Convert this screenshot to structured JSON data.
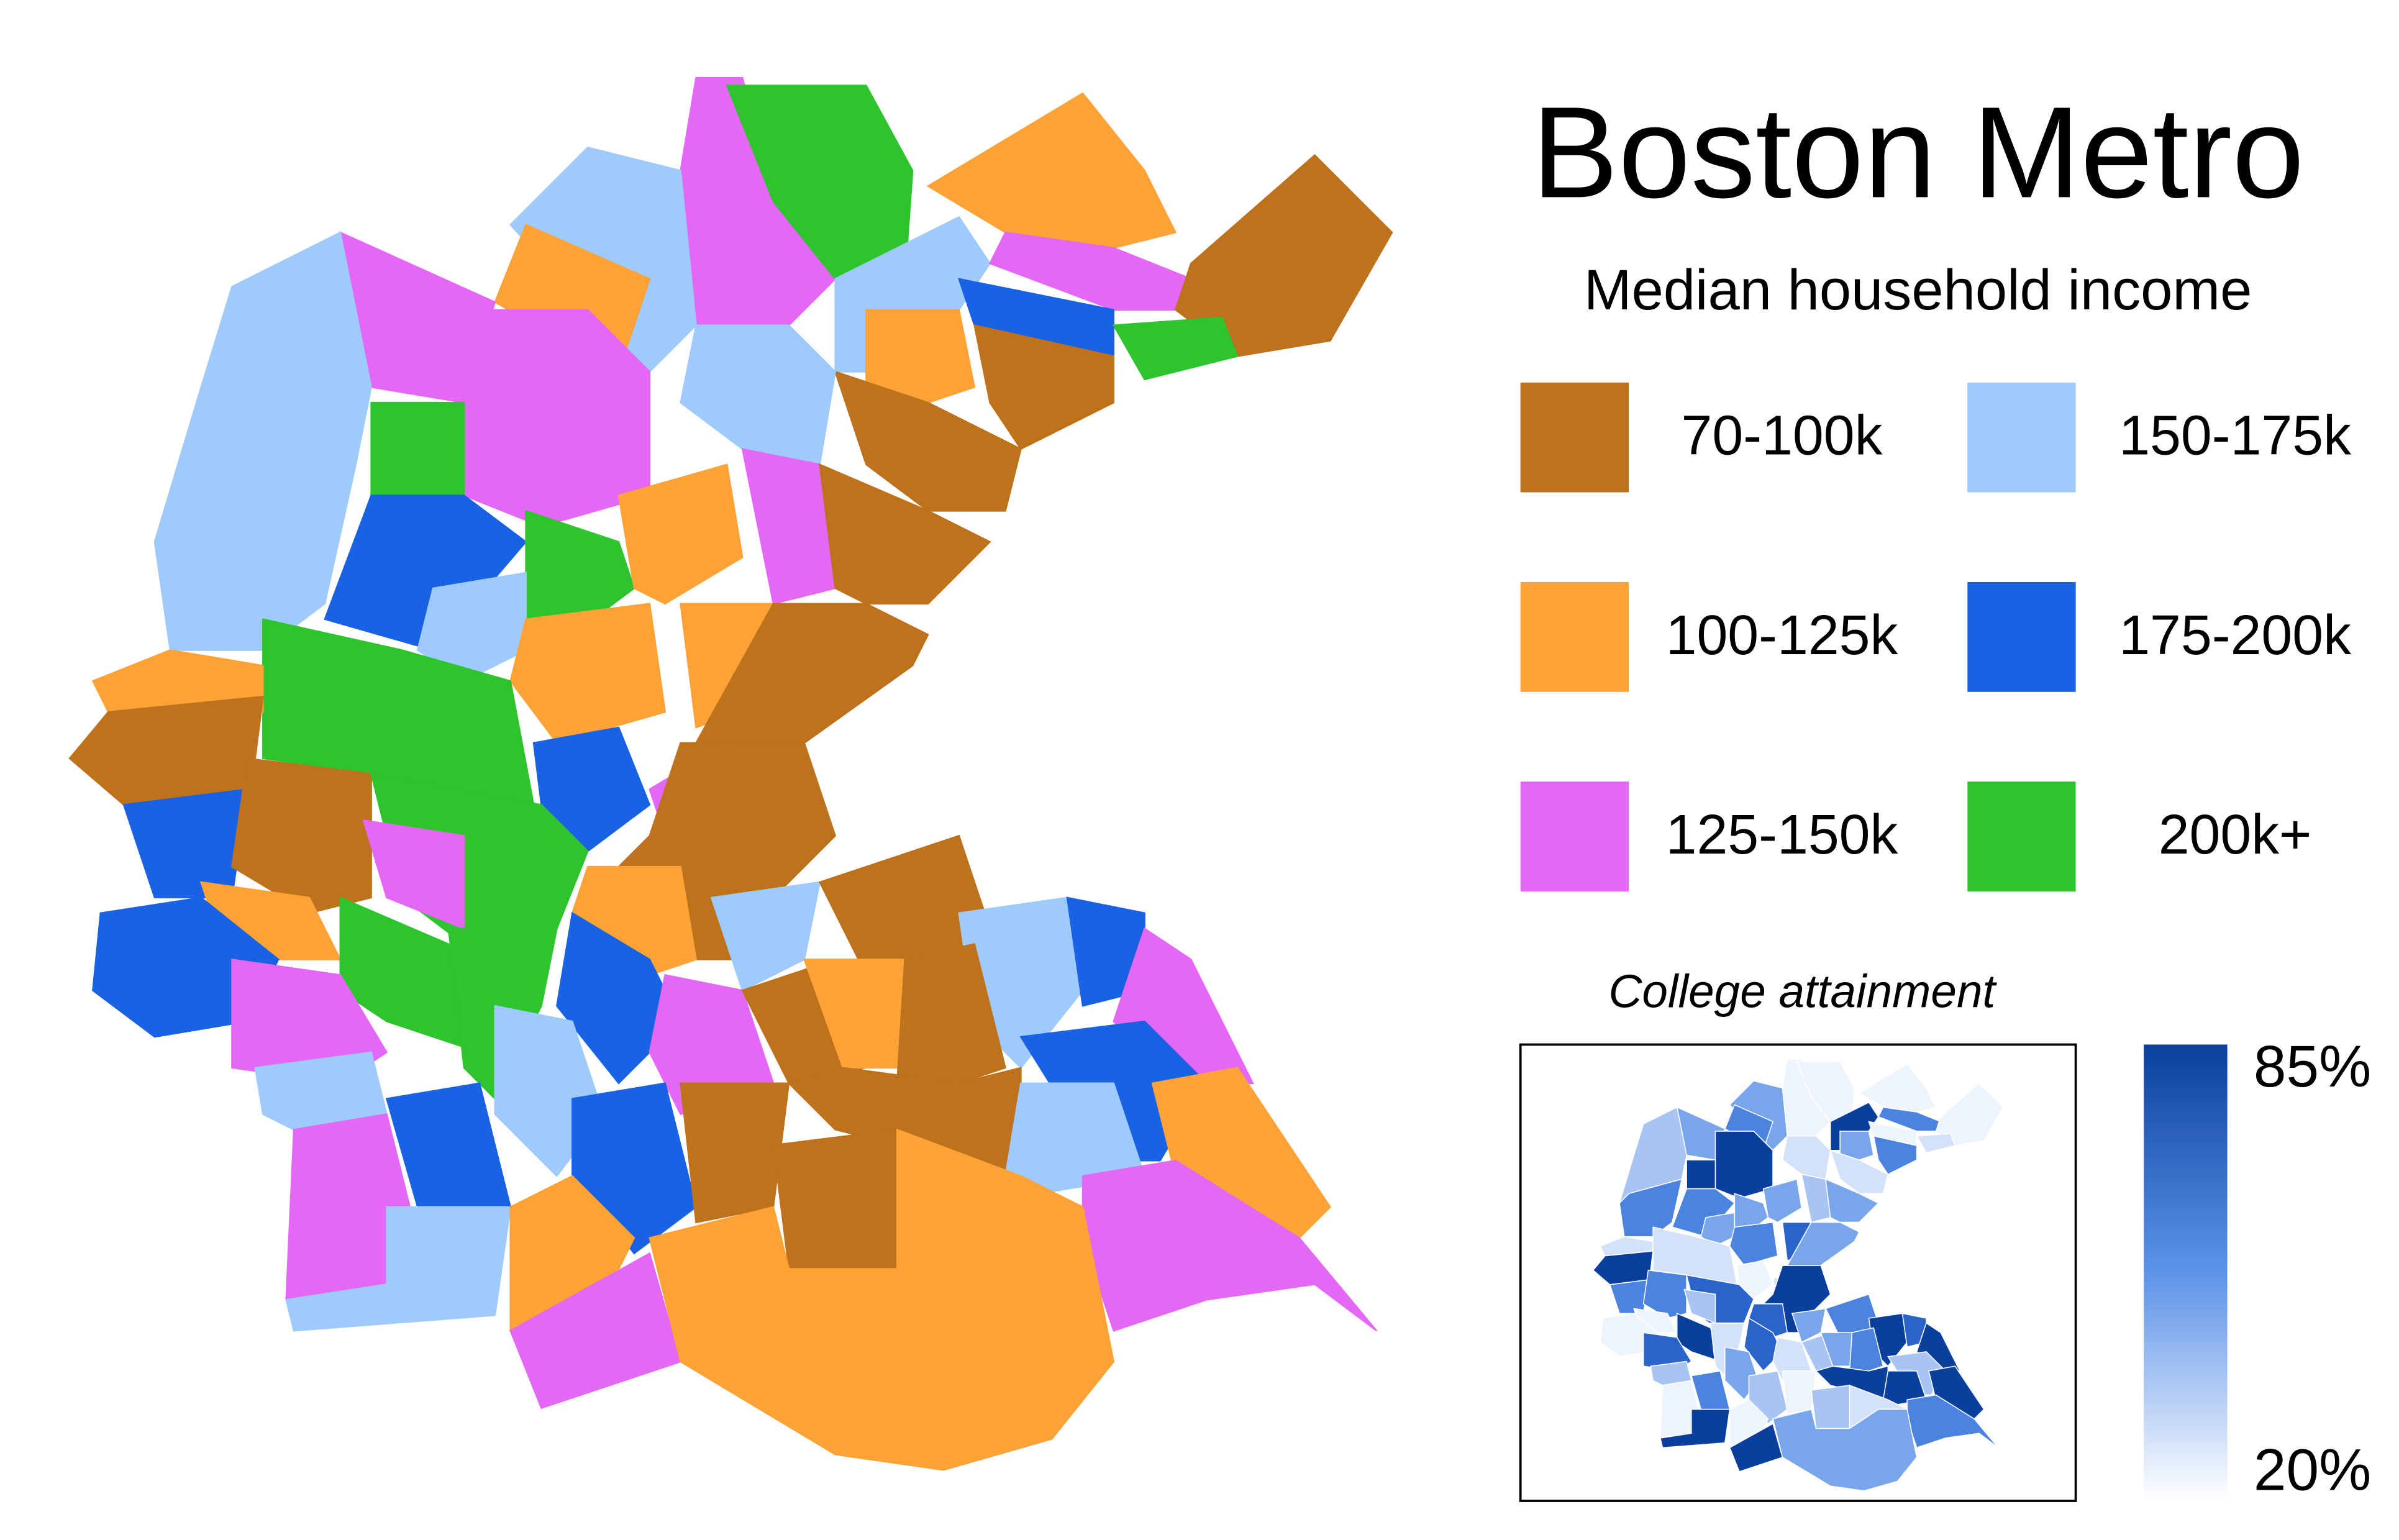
{
  "title": "Boston Metro",
  "subtitle": "Median household income",
  "legend": [
    {
      "label": "70-100k",
      "color": "#bd721b"
    },
    {
      "label": "100-125k",
      "color": "#fca236"
    },
    {
      "label": "125-150k",
      "color": "#e467f5"
    },
    {
      "label": "150-175k",
      "color": "#9ecbfc"
    },
    {
      "label": "175-200k",
      "color": "#1862e3"
    },
    {
      "label": "200k+",
      "color": "#2dc42d"
    }
  ],
  "inset": {
    "title": "College attainment",
    "colorbar": {
      "lim": [
        20,
        85
      ],
      "ticks": [
        {
          "value": 85,
          "label": "85%"
        },
        {
          "value": 20,
          "label": "20%"
        }
      ]
    }
  }
}
